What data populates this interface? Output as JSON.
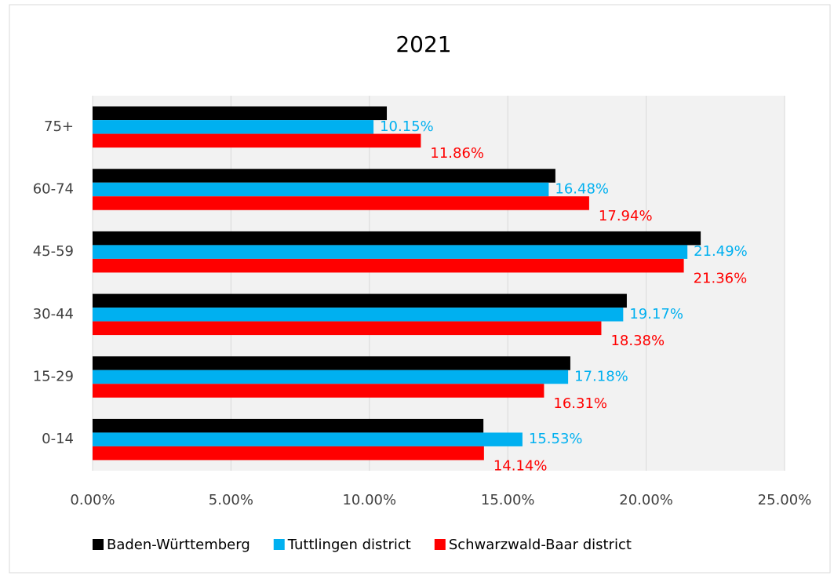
{
  "chart_data": {
    "type": "hbar",
    "title": "2021",
    "categories": [
      "0-14",
      "15-29",
      "30-44",
      "45-59",
      "60-74",
      "75+"
    ],
    "series": [
      {
        "name": "Baden-Württemberg",
        "color": "#000000",
        "values": [
          14.12,
          17.26,
          19.3,
          21.97,
          16.72,
          10.63
        ]
      },
      {
        "name": "Tuttlingen district",
        "color": "#00b0f0",
        "values": [
          15.53,
          17.18,
          19.17,
          21.49,
          16.48,
          10.15
        ],
        "value_labels": [
          "15.53%",
          "17.18%",
          "19.17%",
          "21.49%",
          "16.48%",
          "10.15%"
        ]
      },
      {
        "name": "Schwarzwald-Baar district",
        "color": "#ff0000",
        "values": [
          14.14,
          16.31,
          18.38,
          21.36,
          17.94,
          11.86
        ],
        "value_labels": [
          "14.14%",
          "16.31%",
          "18.38%",
          "21.36%",
          "17.94%",
          "11.86%"
        ]
      }
    ],
    "xlim": [
      0,
      25
    ],
    "xticks": [
      {
        "value": 0,
        "label": "0.00%"
      },
      {
        "value": 5,
        "label": "5.00%"
      },
      {
        "value": 10,
        "label": "10.00%"
      },
      {
        "value": 15,
        "label": "15.00%"
      },
      {
        "value": 20,
        "label": "20.00%"
      },
      {
        "value": 25,
        "label": "25.00%"
      }
    ],
    "grid": true,
    "legend": "bottom"
  }
}
